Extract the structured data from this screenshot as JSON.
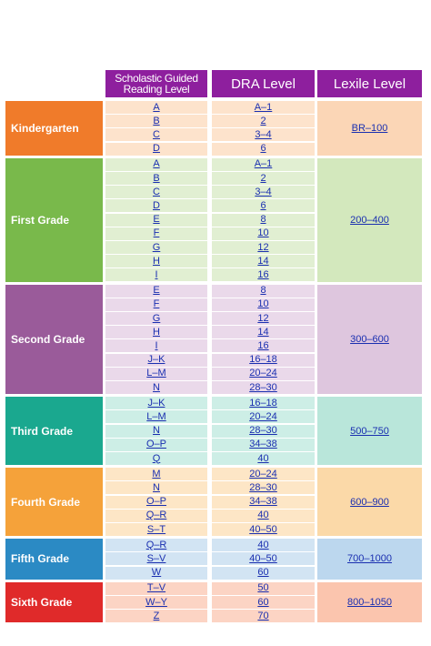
{
  "headers": {
    "guided": "Scholastic Guided Reading Level",
    "dra": "DRA Level",
    "lexile": "Lexile Level"
  },
  "colors": {
    "header": "#8e1f9e",
    "link": "#1a2fb0"
  },
  "grades": [
    {
      "name": "Kindergarten",
      "lexile": "BR–100",
      "color": "#f07b2a",
      "light": "#fde3cc",
      "lexile_bg": "#fbd6b6",
      "rows": [
        [
          "A",
          "A–1"
        ],
        [
          "B",
          "2"
        ],
        [
          "C",
          "3–4"
        ],
        [
          "D",
          "6"
        ]
      ]
    },
    {
      "name": "First Grade",
      "lexile": "200–400",
      "color": "#79b94b",
      "light": "#e1efd2",
      "lexile_bg": "#d3e8bd",
      "rows": [
        [
          "A",
          "A–1"
        ],
        [
          "B",
          "2"
        ],
        [
          "C",
          "3–4"
        ],
        [
          "D",
          "6"
        ],
        [
          "E",
          "8"
        ],
        [
          "F",
          "10"
        ],
        [
          "G",
          "12"
        ],
        [
          "H",
          "14"
        ],
        [
          "I",
          "16"
        ]
      ]
    },
    {
      "name": "Second Grade",
      "lexile": "300–600",
      "color": "#9a5b9a",
      "light": "#ead9ea",
      "lexile_bg": "#dec6de",
      "rows": [
        [
          "E",
          "8"
        ],
        [
          "F",
          "10"
        ],
        [
          "G",
          "12"
        ],
        [
          "H",
          "14"
        ],
        [
          "I",
          "16"
        ],
        [
          "J–K",
          "16–18"
        ],
        [
          "L–M",
          "20–24"
        ],
        [
          "N",
          "28–30"
        ]
      ]
    },
    {
      "name": "Third Grade",
      "lexile": "500–750",
      "color": "#1aa88f",
      "light": "#cdeee6",
      "lexile_bg": "#b9e6da",
      "rows": [
        [
          "J–K",
          "16–18"
        ],
        [
          "L–M",
          "20–24"
        ],
        [
          "N",
          "28–30"
        ],
        [
          "O–P",
          "34–38"
        ],
        [
          "Q",
          "40"
        ]
      ]
    },
    {
      "name": "Fourth Grade",
      "lexile": "600–900",
      "color": "#f5a23a",
      "light": "#fde6c6",
      "lexile_bg": "#fbd9a8",
      "rows": [
        [
          "M",
          "20–24"
        ],
        [
          "N",
          "28–30"
        ],
        [
          "O–P",
          "34–38"
        ],
        [
          "Q–R",
          "40"
        ],
        [
          "S–T",
          "40–50"
        ]
      ]
    },
    {
      "name": "Fifth Grade",
      "lexile": "700–1000",
      "color": "#2b8ac4",
      "light": "#d2e4f3",
      "lexile_bg": "#bcd7ee",
      "rows": [
        [
          "Q–R",
          "40"
        ],
        [
          "S–V",
          "40–50"
        ],
        [
          "W",
          "60"
        ]
      ]
    },
    {
      "name": "Sixth Grade",
      "lexile": "800–1050",
      "color": "#e02a2a",
      "light": "#fcd4c4",
      "lexile_bg": "#fbc5ae",
      "rows": [
        [
          "T–V",
          "50"
        ],
        [
          "W–Y",
          "60"
        ],
        [
          "Z",
          "70"
        ]
      ]
    }
  ]
}
